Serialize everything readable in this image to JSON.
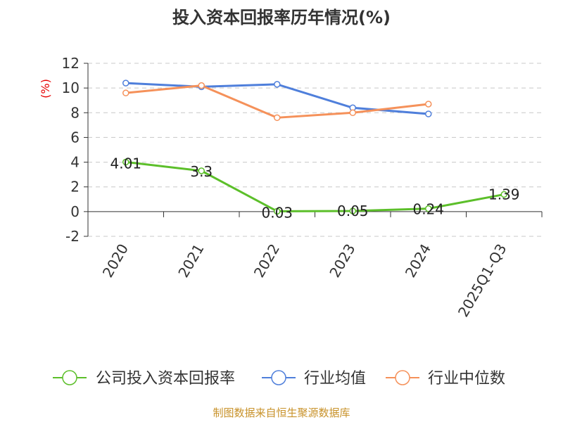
{
  "chart_data": {
    "type": "line",
    "title": "投入资本回报率历年情况(%)",
    "unit_label": "(%)",
    "categories": [
      "2020",
      "2021",
      "2022",
      "2023",
      "2024",
      "2025Q1-Q3"
    ],
    "ylim": [
      -2,
      12
    ],
    "yticks": [
      -2,
      0,
      2,
      4,
      6,
      8,
      10,
      12
    ],
    "grid": true,
    "legend_position": "bottom",
    "series": [
      {
        "name": "公司投入资本回报率",
        "color": "#5cbf2a",
        "values": [
          4.01,
          3.3,
          0.03,
          0.05,
          0.24,
          1.39
        ],
        "labels": [
          "4.01",
          "3.3",
          "0.03",
          "0.05",
          "0.24",
          "1.39"
        ]
      },
      {
        "name": "行业均值",
        "color": "#4f7fdb",
        "values": [
          10.4,
          10.1,
          10.3,
          8.4,
          7.9,
          null
        ]
      },
      {
        "name": "行业中位数",
        "color": "#f5915a",
        "values": [
          9.6,
          10.2,
          7.6,
          8.0,
          8.7,
          null
        ]
      }
    ],
    "source": "制图数据来自恒生聚源数据库"
  }
}
